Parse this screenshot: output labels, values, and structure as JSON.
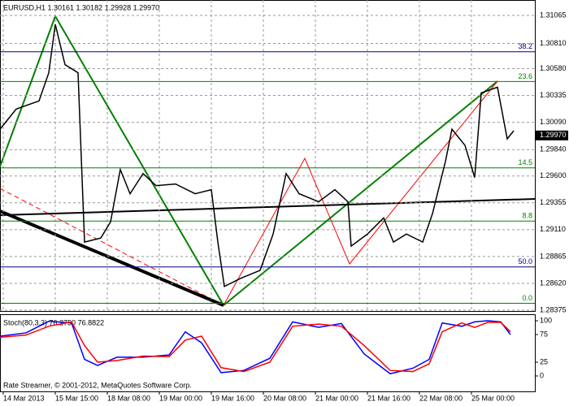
{
  "chart_data": [
    {
      "type": "line",
      "title": "EURUSD,H1  1.30161 1.30182 1.29928 1.29970",
      "color": "#000000",
      "x": [
        0,
        5,
        12,
        15,
        17,
        20,
        24,
        26,
        31,
        34,
        37,
        40,
        44,
        48,
        54,
        60,
        65,
        67,
        69,
        74,
        80,
        84,
        88,
        92,
        98,
        103,
        107,
        108,
        113,
        118,
        121,
        125,
        130,
        133,
        137,
        139,
        143,
        146,
        148,
        153,
        156,
        158
      ],
      "values": [
        1.30027,
        1.30211,
        1.30285,
        1.30542,
        1.30984,
        1.30616,
        1.30542,
        1.28997,
        1.29034,
        1.29181,
        1.29659,
        1.29438,
        1.29622,
        1.29512,
        1.29527,
        1.29438,
        1.29475,
        1.28997,
        1.28592,
        1.28666,
        1.28739,
        1.2907,
        1.29622,
        1.29438,
        1.29365,
        1.29475,
        1.29365,
        1.2896,
        1.2907,
        1.29218,
        1.28997,
        1.2907,
        1.28997,
        1.29255,
        1.29733,
        1.30027,
        1.2988,
        1.29586,
        1.30358,
        1.3041,
        1.29939,
        1.30013
      ],
      "xlim": [
        0,
        164.5
      ],
      "ylim": [
        1.28368,
        1.31206
      ],
      "grid": true,
      "xticks": [
        {
          "value": 1,
          "label": "14 Mar 2013"
        },
        {
          "value": 17,
          "label": "15 Mar 15:00"
        },
        {
          "value": 33,
          "label": "18 Mar 08:00"
        },
        {
          "value": 49,
          "label": "19 Mar 00:00"
        },
        {
          "value": 65,
          "label": "19 Mar 16:00"
        },
        {
          "value": 81,
          "label": "20 Mar 08:00"
        },
        {
          "value": 97,
          "label": "21 Mar 00:00"
        },
        {
          "value": 113,
          "label": "21 Mar 16:00"
        },
        {
          "value": 129,
          "label": "22 Mar 08:00"
        },
        {
          "value": 145,
          "label": "25 Mar 00:00"
        }
      ],
      "yticks": [
        {
          "value": 1.31065,
          "label": "1.31065"
        },
        {
          "value": 1.3081,
          "label": "1.30810"
        },
        {
          "value": 1.3058,
          "label": "1.30580"
        },
        {
          "value": 1.30335,
          "label": "1.30335"
        },
        {
          "value": 1.3009,
          "label": "1.30090"
        },
        {
          "value": 1.2984,
          "label": "1.29840"
        },
        {
          "value": 1.296,
          "label": "1.29600"
        },
        {
          "value": 1.29355,
          "label": "1.29355"
        },
        {
          "value": 1.2911,
          "label": "1.29110"
        },
        {
          "value": 1.28865,
          "label": "1.28865"
        },
        {
          "value": 1.2862,
          "label": "1.28620"
        },
        {
          "value": 1.28375,
          "label": "1.28375"
        }
      ],
      "last_price": {
        "value": 1.2997,
        "label": "1.29970"
      },
      "levels": [
        {
          "value": 1.30734,
          "label": "38.2",
          "color": "#000080"
        },
        {
          "value": 1.30462,
          "label": "23.6",
          "color": "#008000"
        },
        {
          "value": 1.29674,
          "label": "14.5",
          "color": "#008000"
        },
        {
          "value": 1.29189,
          "label": "8.8",
          "color": "#008000"
        },
        {
          "value": 1.2877,
          "label": "50.0",
          "color": "#000080"
        },
        {
          "value": 1.28438,
          "label": "0.0",
          "color": "#008000"
        }
      ]
    },
    {
      "type": "line",
      "title": "Stoch(80,3,3) 76.2750 76.8822",
      "note": "Rate Streamer, © 2001-2012, MetaQuotes Software Corp.",
      "x": [
        0,
        8,
        15,
        22,
        26,
        30,
        36,
        44,
        52,
        57,
        62,
        68,
        75,
        83,
        90,
        98,
        105,
        112,
        120,
        127,
        132,
        136,
        142,
        146,
        150,
        154,
        157
      ],
      "series": [
        {
          "color": "#0000ff",
          "values": [
            72,
            78,
            99,
            96,
            30,
            19,
            34,
            34,
            38,
            80,
            60,
            6,
            10,
            32,
            98,
            88,
            95,
            40,
            4,
            14,
            30,
            96,
            90,
            98,
            100,
            98,
            75
          ]
        },
        {
          "color": "#ff0000",
          "values": [
            70,
            74,
            90,
            98,
            55,
            25,
            28,
            36,
            35,
            65,
            72,
            15,
            8,
            25,
            90,
            94,
            90,
            55,
            10,
            8,
            22,
            80,
            96,
            88,
            97,
            97,
            80
          ]
        }
      ],
      "xlim": [
        0,
        164.5
      ],
      "ylim": [
        0,
        100
      ],
      "yticks": [
        0,
        25,
        75,
        100
      ]
    }
  ]
}
